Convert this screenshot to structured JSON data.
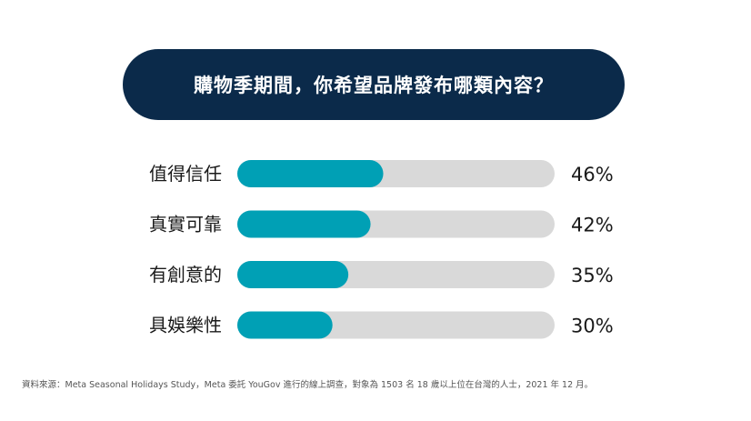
{
  "header": {
    "title": "購物季期間，你希望品牌發布哪類內容？"
  },
  "chart_data": {
    "type": "bar",
    "orientation": "horizontal",
    "title": "購物季期間，你希望品牌發布哪類內容？",
    "categories": [
      "值得信任",
      "真實可靠",
      "有創意的",
      "具娛樂性"
    ],
    "values": [
      46,
      42,
      35,
      30
    ],
    "value_labels": [
      "46%",
      "42%",
      "35%",
      "30%"
    ],
    "unit": "%",
    "xlim": [
      0,
      100
    ],
    "grid": false,
    "legend": "none",
    "colors": {
      "fill": "#00a0b5",
      "track": "#d9d9d9",
      "title_bg": "#0b2a4a"
    }
  },
  "footer": {
    "source": "資料來源：Meta Seasonal Holidays Study，Meta 委託 YouGov 進行的線上調查，對象為 1503 名 18 歲以上位在台灣的人士，2021 年 12 月。"
  }
}
